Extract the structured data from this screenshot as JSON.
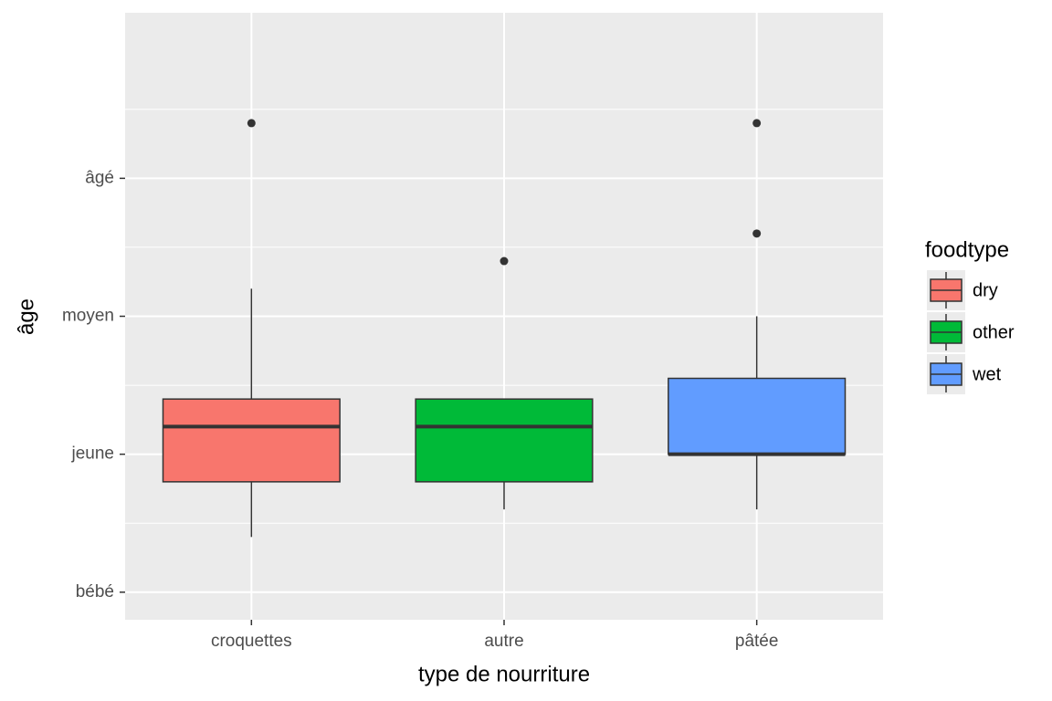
{
  "chart_data": {
    "type": "boxplot",
    "x_label": "type de nourriture",
    "y_label": "âge",
    "categories": [
      "croquettes",
      "autre",
      "pâtée"
    ],
    "legend_title": "foodtype",
    "series": [
      {
        "name": "dry",
        "color": "#f8766d",
        "min": 1.4,
        "q1": 1.8,
        "median": 2.2,
        "q3": 2.4,
        "max": 3.2,
        "outliers": [
          4.4
        ]
      },
      {
        "name": "other",
        "color": "#00ba38",
        "min": 1.6,
        "q1": 1.8,
        "median": 2.2,
        "q3": 2.4,
        "max": 2.4,
        "outliers": [
          3.4
        ]
      },
      {
        "name": "wet",
        "color": "#619cff",
        "min": 1.6,
        "q1": 2.0,
        "median": 2.0,
        "q3": 2.55,
        "max": 3.0,
        "outliers": [
          3.6,
          4.4
        ]
      }
    ],
    "ylim": [
      0.8,
      5.2
    ],
    "yticks": [
      {
        "value": 1,
        "label": "bébé"
      },
      {
        "value": 2,
        "label": "jeune"
      },
      {
        "value": 3,
        "label": "moyen"
      },
      {
        "value": 4,
        "label": "âgé"
      }
    ],
    "grid": true,
    "legend": "right"
  }
}
